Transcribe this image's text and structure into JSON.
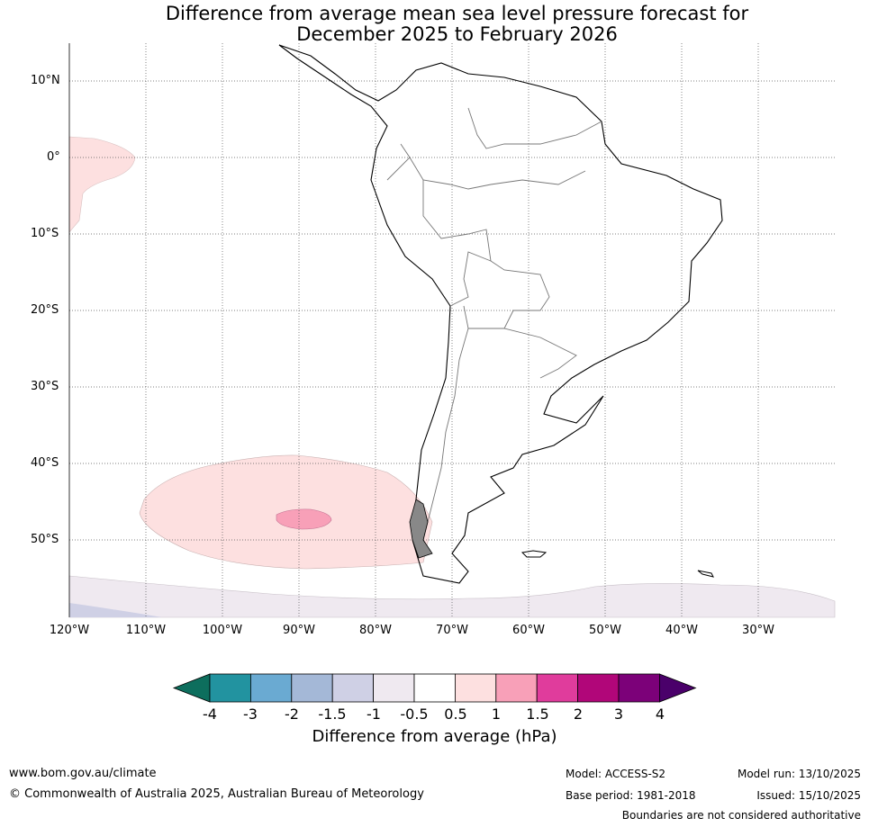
{
  "title_line1": "Difference from average mean sea level pressure forecast for",
  "title_line2": "December 2025 to February 2026",
  "lat_labels": [
    "10°N",
    "0°",
    "10°S",
    "20°S",
    "30°S",
    "40°S",
    "50°S"
  ],
  "lon_labels": [
    "120°W",
    "110°W",
    "100°W",
    "90°W",
    "80°W",
    "70°W",
    "60°W",
    "50°W",
    "40°W",
    "30°W"
  ],
  "legend": {
    "title": "Difference from average (hPa)",
    "ticks": [
      "-4",
      "-3",
      "-2",
      "-1.5",
      "-1",
      "-0.5",
      "0.5",
      "1",
      "1.5",
      "2",
      "3",
      "4"
    ],
    "colors": [
      "#0d6e5d",
      "#2293a0",
      "#6aaad2",
      "#a4b8d7",
      "#cfd0e5",
      "#efe9f0",
      "#ffffff",
      "#fde0e0",
      "#f8a0b8",
      "#e03c9c",
      "#b10679",
      "#7c0179",
      "#4a006a"
    ]
  },
  "footer": {
    "url": "www.bom.gov.au/climate",
    "copyright": "© Commonwealth of Australia 2025, Australian Bureau of Meteorology",
    "model": "Model: ACCESS-S2",
    "base_period": "Base period: 1981-2018",
    "model_run": "Model run: 13/10/2025",
    "issued": "Issued: 15/10/2025",
    "disclaimer": "Boundaries are not considered authoritative"
  }
}
